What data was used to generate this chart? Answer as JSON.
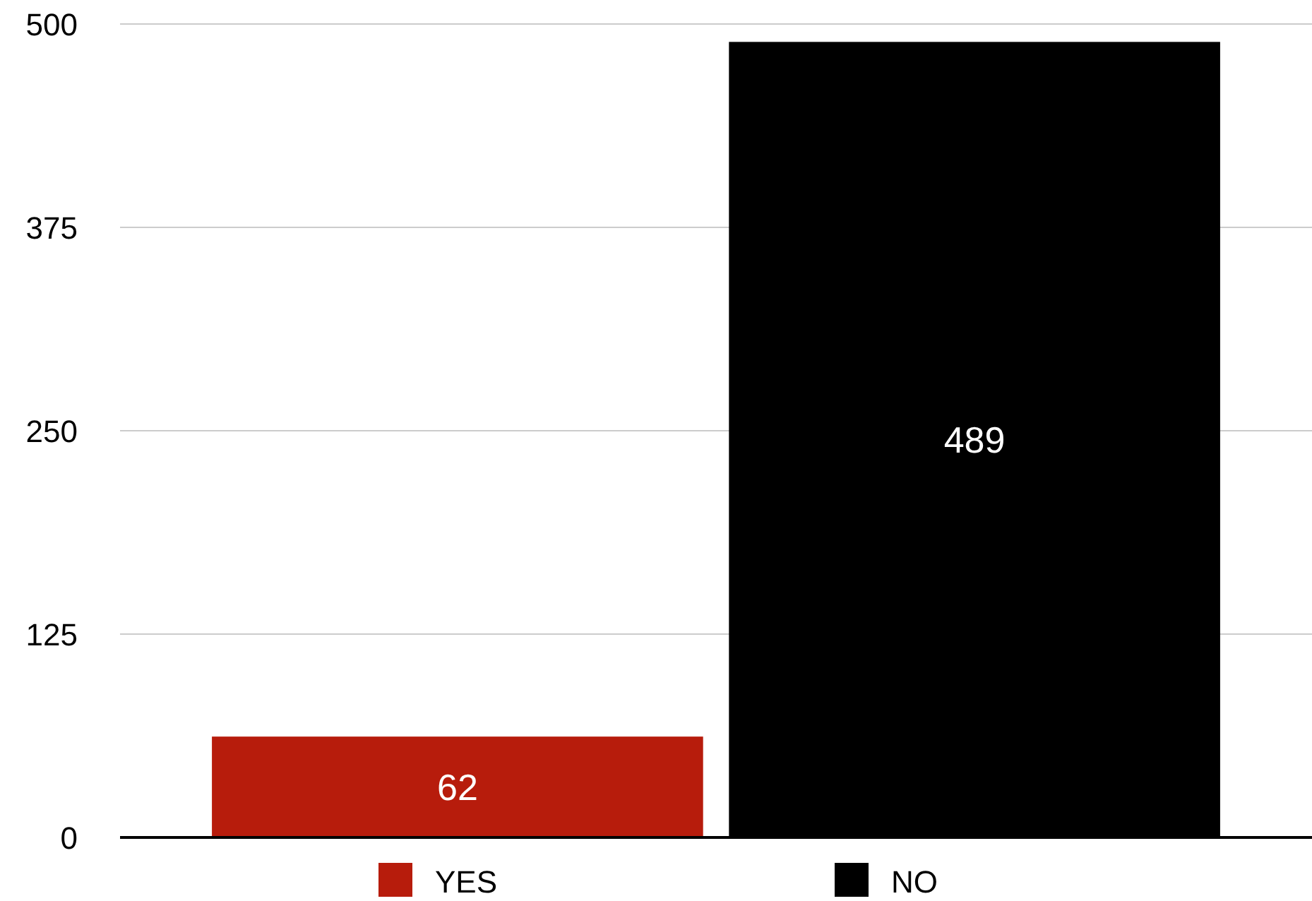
{
  "chart_data": {
    "type": "bar",
    "categories": [
      null
    ],
    "series": [
      {
        "name": "YES",
        "color": "#b71c0c",
        "values": [
          62
        ]
      },
      {
        "name": "NO",
        "color": "#000000",
        "values": [
          489
        ]
      }
    ],
    "ylim": [
      0,
      500
    ],
    "yticks": [
      0,
      125,
      250,
      375,
      500
    ],
    "grid": "y",
    "legend": "bottom",
    "data_labels": true
  }
}
